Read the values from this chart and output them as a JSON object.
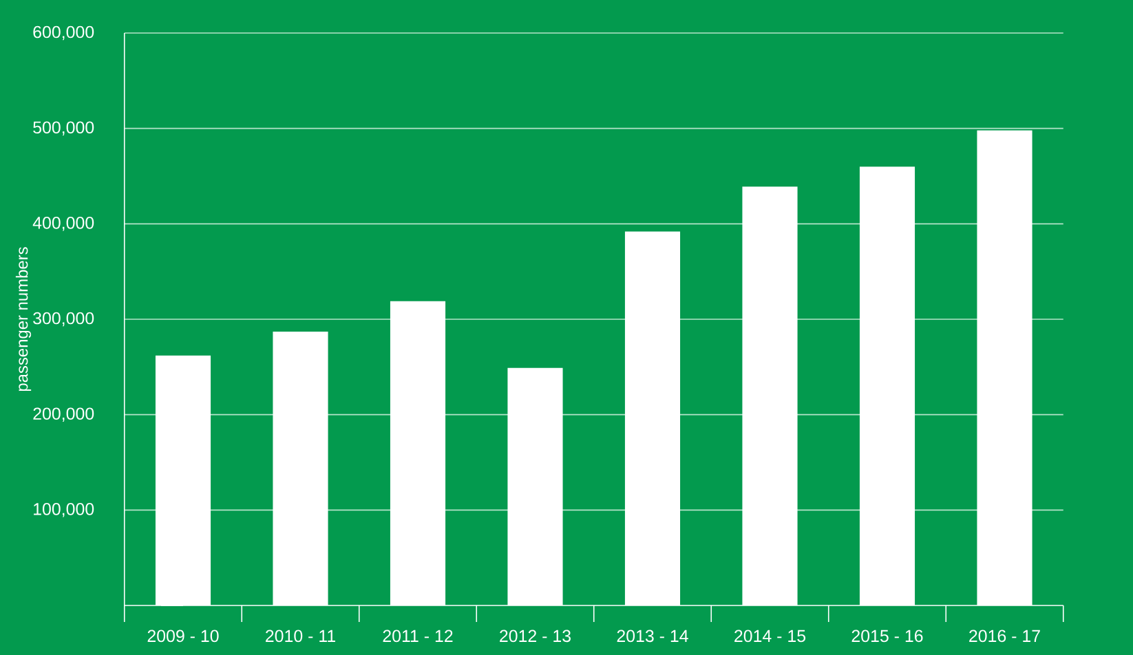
{
  "chart_data": {
    "type": "bar",
    "ylabel": "passenger numbers",
    "categories": [
      "2009 - 10",
      "2010 - 11",
      "2011 - 12",
      "2012 - 13",
      "2013 - 14",
      "2014 - 15",
      "2015 - 16",
      "2016 - 17"
    ],
    "values": [
      262000,
      287000,
      319000,
      249000,
      392000,
      439000,
      460000,
      498000
    ],
    "color": "#ffffff",
    "ylim": [
      0,
      600000
    ],
    "yticks": [
      {
        "value": 100000,
        "label": "100,000"
      },
      {
        "value": 200000,
        "label": "200,000"
      },
      {
        "value": 300000,
        "label": "300,000"
      },
      {
        "value": 400000,
        "label": "400,000"
      },
      {
        "value": 500000,
        "label": "500,000"
      },
      {
        "value": 600000,
        "label": "600,000"
      }
    ],
    "grid": "y"
  }
}
